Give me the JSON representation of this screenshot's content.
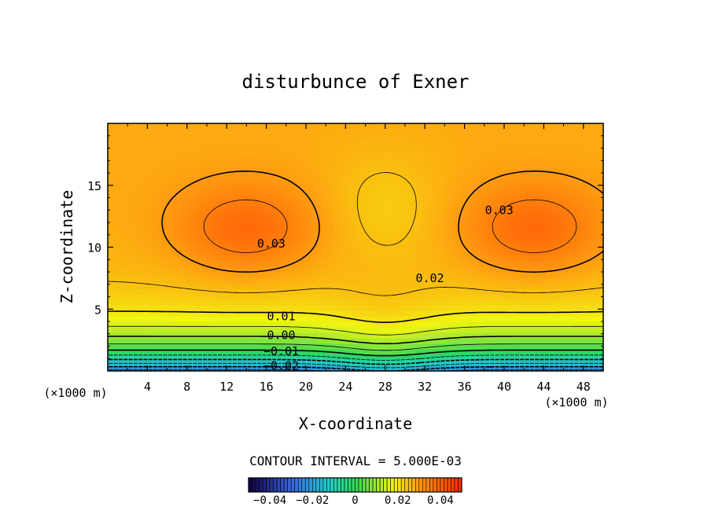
{
  "chart_data": {
    "type": "heatmap",
    "title": "disturbunce of Exner",
    "xlabel": "X-coordinate",
    "ylabel": "Z-coordinate",
    "x_unit_label": "(×1000 m)",
    "y_unit_label": "(×1000 m)",
    "xlim": [
      0,
      50
    ],
    "ylim": [
      0,
      20
    ],
    "x_ticks": [
      "4",
      "8",
      "12",
      "16",
      "20",
      "24",
      "28",
      "32",
      "36",
      "40",
      "44",
      "48"
    ],
    "y_ticks": [
      "5",
      "10",
      "15"
    ],
    "contour_interval_text": "CONTOUR INTERVAL = 5.000E-03",
    "contour_labels": [
      {
        "text": "0.03",
        "x": 16.5,
        "z": 10.3
      },
      {
        "text": "0.03",
        "x": 39.5,
        "z": 13.0
      },
      {
        "text": "0.02",
        "x": 32.5,
        "z": 7.5
      },
      {
        "text": "0.01",
        "x": 17.5,
        "z": 4.4
      },
      {
        "text": "0.00",
        "x": 17.5,
        "z": 2.9
      },
      {
        "text": "-0.01",
        "x": 17.5,
        "z": 1.6
      },
      {
        "text": "-0.02",
        "x": 17.5,
        "z": 0.4
      }
    ],
    "colorbar": {
      "min": -0.05,
      "max": 0.05,
      "tick_labels": [
        "-0.04",
        "-0.02",
        "0",
        "0.02",
        "0.04"
      ],
      "tick_values": [
        -0.04,
        -0.02,
        0,
        0.02,
        0.04
      ]
    },
    "colors": {
      "min": "#10003f",
      "low": "#3a64e0",
      "mid_low": "#20cfc8",
      "zero": "#2fd85a",
      "mid_high": "#f2f511",
      "high": "#ff9b10",
      "max": "#ff2800"
    }
  }
}
